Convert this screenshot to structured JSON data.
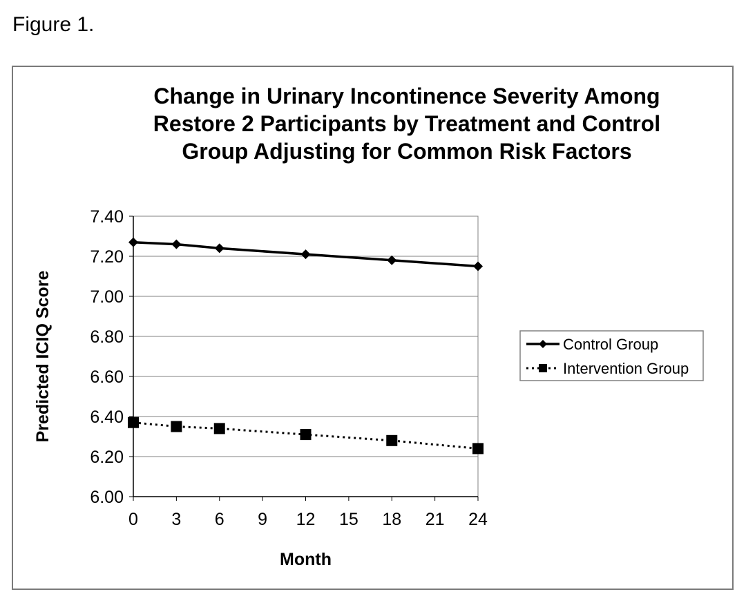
{
  "figure_label": "Figure 1.",
  "chart_data": {
    "type": "line",
    "title": "Change in Urinary Incontinence Severity Among Restore 2 Participants by Treatment and Control Group Adjusting for Common Risk Factors",
    "title_lines": [
      "Change in Urinary Incontinence Severity Among",
      "Restore 2 Participants by Treatment and Control",
      "Group Adjusting for Common Risk Factors"
    ],
    "xlabel": "Month",
    "ylabel": "Predicted ICIQ Score",
    "xlim": [
      0,
      24
    ],
    "ylim": [
      6.0,
      7.4
    ],
    "x_ticks": [
      "0",
      "3",
      "6",
      "9",
      "12",
      "15",
      "18",
      "21",
      "24"
    ],
    "y_ticks": [
      "6.00",
      "6.20",
      "6.40",
      "6.60",
      "6.80",
      "7.00",
      "7.20",
      "7.40"
    ],
    "grid": "horizontal",
    "legend_position": "right",
    "series": [
      {
        "name": "Control Group",
        "line_style": "solid",
        "marker": "diamond",
        "color": "#000000",
        "x": [
          0,
          3,
          6,
          12,
          18,
          24
        ],
        "y": [
          7.27,
          7.26,
          7.24,
          7.21,
          7.18,
          7.15
        ]
      },
      {
        "name": "Intervention Group",
        "line_style": "dotted",
        "marker": "square",
        "color": "#000000",
        "x": [
          0,
          3,
          6,
          12,
          18,
          24
        ],
        "y": [
          6.37,
          6.35,
          6.34,
          6.31,
          6.28,
          6.24
        ]
      }
    ]
  }
}
